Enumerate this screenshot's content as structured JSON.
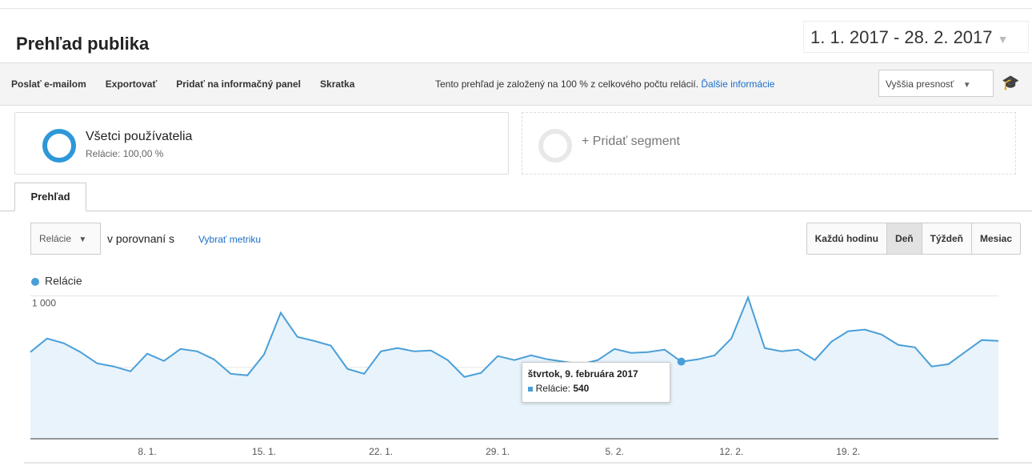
{
  "header": {
    "title": "Prehľad publika",
    "date_range": "1. 1. 2017 - 28. 2. 2017"
  },
  "toolbar": {
    "items": [
      "Poslať e-mailom",
      "Exportovať",
      "Pridať na informačný panel",
      "Skratka"
    ],
    "notice": "Tento prehľad je založený na 100 % z celkového počtu relácií.",
    "notice_link": "Ďalšie informácie",
    "precision": "Vyššia presnosť"
  },
  "segments": {
    "name": "Všetci používatelia",
    "detail": "Relácie: 100,00 %",
    "add": "+ Pridať segment"
  },
  "tab": "Prehľad",
  "controls": {
    "metric": "Relácie",
    "compare": "v porovnaní s",
    "pick_metric": "Vybrať metriku",
    "intervals": [
      "Každú hodinu",
      "Deň",
      "Týždeň",
      "Mesiac"
    ],
    "active_interval": "Deň"
  },
  "chart_data": {
    "type": "line",
    "categories": [
      null,
      null,
      null,
      null,
      null,
      null,
      null,
      "8. 1.",
      null,
      null,
      null,
      null,
      null,
      null,
      "15. 1.",
      null,
      null,
      null,
      null,
      null,
      null,
      "22. 1.",
      null,
      null,
      null,
      null,
      null,
      null,
      "29. 1.",
      null,
      null,
      null,
      null,
      null,
      null,
      "5. 2.",
      null,
      null,
      null,
      null,
      null,
      null,
      "12. 2.",
      null,
      null,
      null,
      null,
      null,
      null,
      "19. 2.",
      null,
      null,
      null,
      null,
      null,
      null,
      null,
      null,
      null
    ],
    "series": [
      {
        "name": "Relácie",
        "color": "#4a9fd8",
        "values": [
          607,
          702,
          669,
          607,
          528,
          506,
          472,
          596,
          545,
          629,
          612,
          556,
          455,
          444,
          590,
          882,
          713,
          685,
          652,
          489,
          455,
          612,
          635,
          612,
          618,
          551,
          433,
          461,
          579,
          551,
          584,
          556,
          539,
          522,
          551,
          629,
          601,
          607,
          624,
          540,
          556,
          584,
          702,
          989,
          635,
          612,
          624,
          551,
          680,
          753,
          764,
          730,
          657,
          640,
          506,
          522,
          607,
          691,
          685
        ]
      }
    ],
    "ylim": [
      0,
      1020
    ],
    "yticks": [
      500,
      {
        "value": 1000,
        "label": "1 000"
      }
    ],
    "grid": true,
    "tooltip": {
      "title": "štvrtok, 9. februára 2017",
      "label": "Relácie:",
      "value": 540
    }
  }
}
